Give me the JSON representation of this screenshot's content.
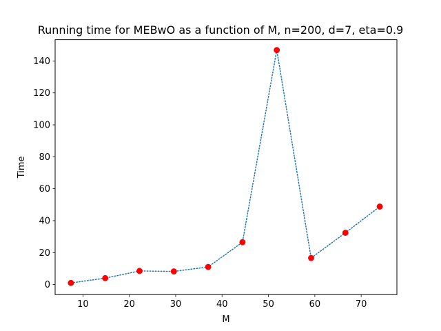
{
  "chart_data": {
    "type": "line",
    "title": "Running time for MEBwO as a function of M, n=200, d=7, eta=0.9",
    "xlabel": "M",
    "ylabel": "Time",
    "xlim": [
      4.0,
      77.7
    ],
    "ylim": [
      -6.3,
      153.3
    ],
    "xticks": [
      10,
      20,
      30,
      40,
      50,
      60,
      70
    ],
    "yticks": [
      0,
      20,
      40,
      60,
      80,
      100,
      120,
      140
    ],
    "grid": false,
    "line_style": "dotted",
    "line_color": "#1f77b4",
    "marker_color": "#ff0000",
    "series": [
      {
        "x": [
          7.4,
          14.8,
          22.2,
          29.6,
          37.0,
          44.4,
          51.8,
          59.2,
          66.6,
          74.0
        ],
        "values": [
          1.0,
          4.0,
          8.5,
          8.2,
          11.0,
          26.5,
          146.8,
          16.6,
          32.4,
          48.8
        ]
      }
    ]
  }
}
